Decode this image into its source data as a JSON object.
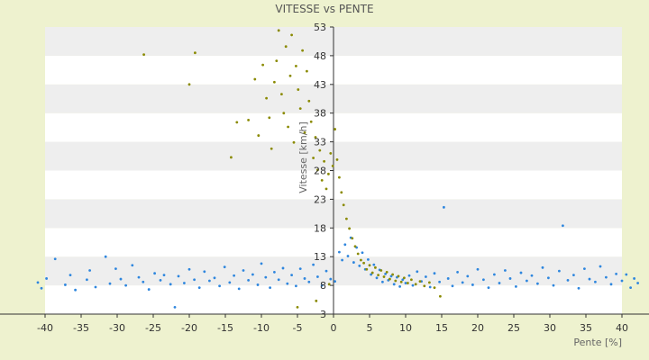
{
  "chart_data": {
    "type": "scatter",
    "title": "VITESSE vs PENTE",
    "xlabel": "Pente [%]",
    "ylabel": "Vitesse [km/h]",
    "xlim": [
      -40,
      40
    ],
    "ylim": [
      3,
      53
    ],
    "xticks": [
      -40,
      -35,
      -30,
      -25,
      -20,
      -15,
      -10,
      -5,
      0,
      5,
      10,
      15,
      20,
      25,
      30,
      35,
      40
    ],
    "yticks": [
      3,
      8,
      13,
      18,
      23,
      28,
      33,
      38,
      43,
      48,
      53
    ],
    "grid": "alternating horizontal bands",
    "legend": "none",
    "colors": {
      "background": "#eef2cf",
      "band_light": "#ffffff",
      "band_dark": "#eeeeee",
      "series_blue": "#2e86de",
      "series_olive": "#8a8a00",
      "axis": "#333333"
    },
    "series": [
      {
        "color": "#2e86de",
        "points": [
          [
            -41,
            8.5
          ],
          [
            -40.5,
            7.5
          ],
          [
            -39.8,
            9.2
          ],
          [
            -38.6,
            12.6
          ],
          [
            -37.2,
            8.1
          ],
          [
            -36.5,
            9.8
          ],
          [
            -35.8,
            7.2
          ],
          [
            -34.2,
            9.0
          ],
          [
            -33.8,
            10.6
          ],
          [
            -33.0,
            7.7
          ],
          [
            -31.6,
            13.0
          ],
          [
            -31.0,
            8.3
          ],
          [
            -30.2,
            10.9
          ],
          [
            -29.5,
            9.1
          ],
          [
            -28.8,
            8.0
          ],
          [
            -27.9,
            11.5
          ],
          [
            -27.0,
            9.4
          ],
          [
            -26.4,
            8.6
          ],
          [
            -25.6,
            7.3
          ],
          [
            -24.8,
            10.1
          ],
          [
            -24.0,
            8.9
          ],
          [
            -23.5,
            9.8
          ],
          [
            -22.6,
            8.2
          ],
          [
            -22.0,
            4.2
          ],
          [
            -21.5,
            9.6
          ],
          [
            -20.7,
            8.4
          ],
          [
            -20.0,
            10.8
          ],
          [
            -19.3,
            9.0
          ],
          [
            -18.6,
            7.6
          ],
          [
            -17.9,
            10.4
          ],
          [
            -17.2,
            8.8
          ],
          [
            -16.5,
            9.3
          ],
          [
            -15.8,
            7.9
          ],
          [
            -15.1,
            11.2
          ],
          [
            -14.4,
            8.5
          ],
          [
            -13.8,
            9.7
          ],
          [
            -13.1,
            7.4
          ],
          [
            -12.5,
            10.6
          ],
          [
            -11.8,
            8.9
          ],
          [
            -11.2,
            9.9
          ],
          [
            -10.5,
            8.1
          ],
          [
            -10.0,
            11.8
          ],
          [
            -9.4,
            9.4
          ],
          [
            -8.8,
            7.6
          ],
          [
            -8.2,
            10.3
          ],
          [
            -7.6,
            9.0
          ],
          [
            -7.0,
            11.0
          ],
          [
            -6.4,
            8.3
          ],
          [
            -5.8,
            9.8
          ],
          [
            -5.2,
            7.9
          ],
          [
            -4.6,
            10.9
          ],
          [
            -4.0,
            9.2
          ],
          [
            -3.4,
            8.6
          ],
          [
            -2.8,
            11.6
          ],
          [
            -2.2,
            9.5
          ],
          [
            -1.6,
            8.0
          ],
          [
            -1.0,
            10.5
          ],
          [
            -0.4,
            9.1
          ],
          [
            0.2,
            8.7
          ],
          [
            0.8,
            13.8
          ],
          [
            1.2,
            12.4
          ],
          [
            1.6,
            15.1
          ],
          [
            2.0,
            13.1
          ],
          [
            2.4,
            16.3
          ],
          [
            2.8,
            12.0
          ],
          [
            3.2,
            14.6
          ],
          [
            3.6,
            11.4
          ],
          [
            4.0,
            13.7
          ],
          [
            4.4,
            10.8
          ],
          [
            4.8,
            12.5
          ],
          [
            5.2,
            9.9
          ],
          [
            5.6,
            11.6
          ],
          [
            6.0,
            9.3
          ],
          [
            6.4,
            10.7
          ],
          [
            6.8,
            8.6
          ],
          [
            7.2,
            10.0
          ],
          [
            7.6,
            8.9
          ],
          [
            8.0,
            9.6
          ],
          [
            8.4,
            8.2
          ],
          [
            8.8,
            9.4
          ],
          [
            9.2,
            7.8
          ],
          [
            9.6,
            9.0
          ],
          [
            10.0,
            8.4
          ],
          [
            10.5,
            9.7
          ],
          [
            11.0,
            8.0
          ],
          [
            11.6,
            10.4
          ],
          [
            12.2,
            8.7
          ],
          [
            12.8,
            9.5
          ],
          [
            13.4,
            7.7
          ],
          [
            14.0,
            10.1
          ],
          [
            14.7,
            8.6
          ],
          [
            15.3,
            21.6
          ],
          [
            15.9,
            9.2
          ],
          [
            16.5,
            7.9
          ],
          [
            17.2,
            10.3
          ],
          [
            17.9,
            8.5
          ],
          [
            18.6,
            9.6
          ],
          [
            19.3,
            8.1
          ],
          [
            20.0,
            10.8
          ],
          [
            20.8,
            9.0
          ],
          [
            21.5,
            7.6
          ],
          [
            22.3,
            9.9
          ],
          [
            23.0,
            8.4
          ],
          [
            23.8,
            10.6
          ],
          [
            24.5,
            9.2
          ],
          [
            25.3,
            7.8
          ],
          [
            26.0,
            10.2
          ],
          [
            26.8,
            8.8
          ],
          [
            27.5,
            9.7
          ],
          [
            28.3,
            8.3
          ],
          [
            29.0,
            11.1
          ],
          [
            29.8,
            9.3
          ],
          [
            30.5,
            8.0
          ],
          [
            31.3,
            10.5
          ],
          [
            31.8,
            18.4
          ],
          [
            32.5,
            8.9
          ],
          [
            33.3,
            9.8
          ],
          [
            34.0,
            7.5
          ],
          [
            34.8,
            10.9
          ],
          [
            35.5,
            9.1
          ],
          [
            36.3,
            8.6
          ],
          [
            37.0,
            11.3
          ],
          [
            37.8,
            9.4
          ],
          [
            38.5,
            8.2
          ],
          [
            39.2,
            10.0
          ],
          [
            40.0,
            8.8
          ],
          [
            40.6,
            9.9
          ],
          [
            41.2,
            7.6
          ],
          [
            41.7,
            9.2
          ],
          [
            42.2,
            8.4
          ]
        ]
      },
      {
        "color": "#8a8a00",
        "points": [
          [
            -26.3,
            48.2
          ],
          [
            -19.2,
            48.5
          ],
          [
            -20.0,
            43.0
          ],
          [
            -13.4,
            36.4
          ],
          [
            -14.2,
            30.3
          ],
          [
            -11.8,
            36.8
          ],
          [
            -10.9,
            43.9
          ],
          [
            -10.4,
            34.1
          ],
          [
            -9.8,
            46.4
          ],
          [
            -9.3,
            40.6
          ],
          [
            -8.9,
            37.2
          ],
          [
            -8.6,
            31.8
          ],
          [
            -8.2,
            43.4
          ],
          [
            -7.9,
            47.1
          ],
          [
            -7.6,
            52.4
          ],
          [
            -7.2,
            41.3
          ],
          [
            -6.9,
            38.0
          ],
          [
            -6.6,
            49.6
          ],
          [
            -6.3,
            35.6
          ],
          [
            -6.0,
            44.5
          ],
          [
            -5.8,
            51.6
          ],
          [
            -5.5,
            32.9
          ],
          [
            -5.2,
            46.2
          ],
          [
            -4.9,
            42.1
          ],
          [
            -4.6,
            38.8
          ],
          [
            -4.3,
            48.9
          ],
          [
            -4.0,
            34.6
          ],
          [
            -3.7,
            45.3
          ],
          [
            -3.4,
            40.1
          ],
          [
            -3.1,
            36.5
          ],
          [
            -2.8,
            30.2
          ],
          [
            -2.5,
            33.8
          ],
          [
            -2.2,
            28.1
          ],
          [
            -1.9,
            31.5
          ],
          [
            -1.6,
            26.3
          ],
          [
            -1.3,
            29.6
          ],
          [
            -1.0,
            24.8
          ],
          [
            -0.7,
            27.4
          ],
          [
            -0.4,
            31.0
          ],
          [
            -0.1,
            28.8
          ],
          [
            0.2,
            35.2
          ],
          [
            0.5,
            29.9
          ],
          [
            0.8,
            26.8
          ],
          [
            1.1,
            24.2
          ],
          [
            1.4,
            22.0
          ],
          [
            1.8,
            19.6
          ],
          [
            2.2,
            17.9
          ],
          [
            2.6,
            16.2
          ],
          [
            3.0,
            14.8
          ],
          [
            3.4,
            13.5
          ],
          [
            3.8,
            12.4
          ],
          [
            4.2,
            11.9
          ],
          [
            4.6,
            10.8
          ],
          [
            5.0,
            11.5
          ],
          [
            5.4,
            10.2
          ],
          [
            5.8,
            11.1
          ],
          [
            6.2,
            9.8
          ],
          [
            6.6,
            10.6
          ],
          [
            7.0,
            9.5
          ],
          [
            7.4,
            10.3
          ],
          [
            7.8,
            9.1
          ],
          [
            8.2,
            9.9
          ],
          [
            8.6,
            8.8
          ],
          [
            9.0,
            9.6
          ],
          [
            9.4,
            8.6
          ],
          [
            9.8,
            9.3
          ],
          [
            10.3,
            8.4
          ],
          [
            10.8,
            9.0
          ],
          [
            11.4,
            8.2
          ],
          [
            12.0,
            8.7
          ],
          [
            12.6,
            7.9
          ],
          [
            13.3,
            8.5
          ],
          [
            14.0,
            7.6
          ],
          [
            14.8,
            6.1
          ],
          [
            -5.0,
            4.2
          ],
          [
            -2.4,
            5.3
          ],
          [
            -0.6,
            8.2
          ]
        ]
      }
    ]
  }
}
